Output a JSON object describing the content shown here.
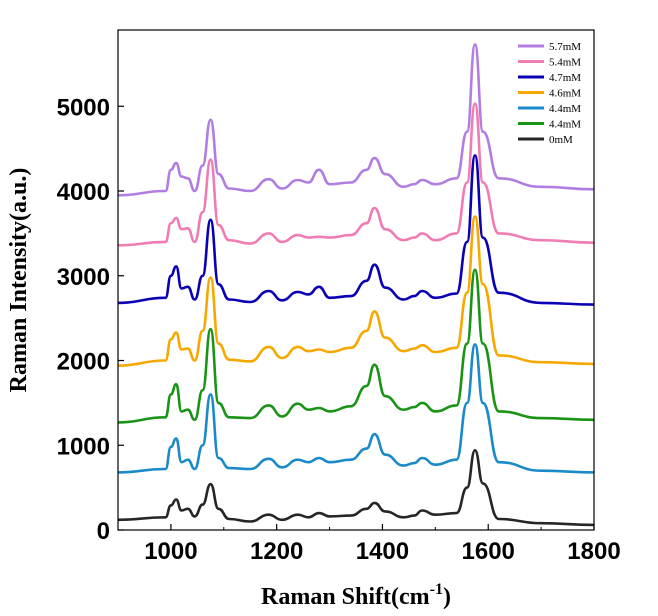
{
  "chart_data": {
    "type": "line",
    "xlabel": "Raman Shift(cm",
    "xlabel_sup": "-1",
    "xlabel_suffix": ")",
    "ylabel": "Raman Intensity(a.u.)",
    "xlim": [
      900,
      1800
    ],
    "ylim": [
      0,
      5900
    ],
    "xticks": [
      "1000",
      "1200",
      "1400",
      "1600",
      "1800"
    ],
    "yticks": [
      "0",
      "1000",
      "2000",
      "3000",
      "4000",
      "5000"
    ],
    "grid": false,
    "legend_position": "top-right",
    "x": [
      900,
      990,
      1000,
      1010,
      1020,
      1032,
      1045,
      1060,
      1075,
      1090,
      1110,
      1150,
      1185,
      1210,
      1240,
      1260,
      1280,
      1300,
      1340,
      1370,
      1385,
      1405,
      1440,
      1460,
      1475,
      1500,
      1540,
      1560,
      1575,
      1590,
      1620,
      1700,
      1800
    ],
    "series": [
      {
        "name": "5.7mM",
        "color": "#b07ee0",
        "values": [
          3950,
          4000,
          4250,
          4330,
          4170,
          4150,
          4000,
          4300,
          4840,
          4200,
          4030,
          4000,
          4140,
          4030,
          4130,
          4100,
          4250,
          4080,
          4100,
          4250,
          4390,
          4200,
          4050,
          4080,
          4130,
          4080,
          4150,
          4700,
          5730,
          4700,
          4150,
          4050,
          4020
        ]
      },
      {
        "name": "5.4mM",
        "color": "#f07cb4",
        "values": [
          3360,
          3400,
          3620,
          3680,
          3550,
          3560,
          3400,
          3750,
          4370,
          3600,
          3420,
          3380,
          3500,
          3400,
          3480,
          3450,
          3460,
          3450,
          3480,
          3620,
          3800,
          3550,
          3420,
          3450,
          3500,
          3420,
          3500,
          4100,
          5030,
          4100,
          3500,
          3420,
          3390
        ]
      },
      {
        "name": "4.7mM",
        "color": "#0a00b4",
        "values": [
          2680,
          2740,
          3000,
          3110,
          2850,
          2870,
          2720,
          3000,
          3660,
          2900,
          2720,
          2690,
          2820,
          2710,
          2810,
          2780,
          2870,
          2740,
          2760,
          2940,
          3130,
          2860,
          2720,
          2760,
          2820,
          2740,
          2790,
          3400,
          4420,
          3450,
          2800,
          2680,
          2660
        ]
      },
      {
        "name": "4.6mM",
        "color": "#f7a800",
        "values": [
          1940,
          2000,
          2250,
          2330,
          2130,
          2140,
          2000,
          2350,
          2980,
          2200,
          2010,
          1990,
          2160,
          2030,
          2160,
          2110,
          2130,
          2100,
          2150,
          2350,
          2580,
          2270,
          2110,
          2140,
          2180,
          2100,
          2150,
          2800,
          3700,
          2900,
          2060,
          1980,
          1960
        ]
      },
      {
        "name": "4.4mM",
        "color": "#1a8ac8",
        "values": [
          680,
          720,
          980,
          1080,
          800,
          830,
          720,
          1000,
          1600,
          850,
          730,
          720,
          840,
          740,
          830,
          800,
          850,
          800,
          830,
          960,
          1130,
          890,
          760,
          790,
          850,
          770,
          830,
          1500,
          2190,
          1500,
          800,
          700,
          680
        ]
      },
      {
        "name": "4.4mM",
        "color": "#1a9416",
        "values": [
          1270,
          1330,
          1600,
          1720,
          1400,
          1420,
          1300,
          1650,
          2370,
          1500,
          1330,
          1320,
          1470,
          1340,
          1490,
          1420,
          1440,
          1400,
          1460,
          1700,
          1950,
          1580,
          1420,
          1450,
          1500,
          1400,
          1470,
          2200,
          3070,
          2200,
          1400,
          1320,
          1300
        ]
      },
      {
        "name": "0mM",
        "color": "#262626",
        "values": [
          120,
          150,
          290,
          360,
          230,
          250,
          160,
          300,
          540,
          250,
          130,
          100,
          180,
          120,
          180,
          150,
          200,
          160,
          170,
          250,
          320,
          220,
          150,
          170,
          230,
          180,
          200,
          500,
          940,
          550,
          130,
          80,
          60
        ]
      }
    ]
  }
}
